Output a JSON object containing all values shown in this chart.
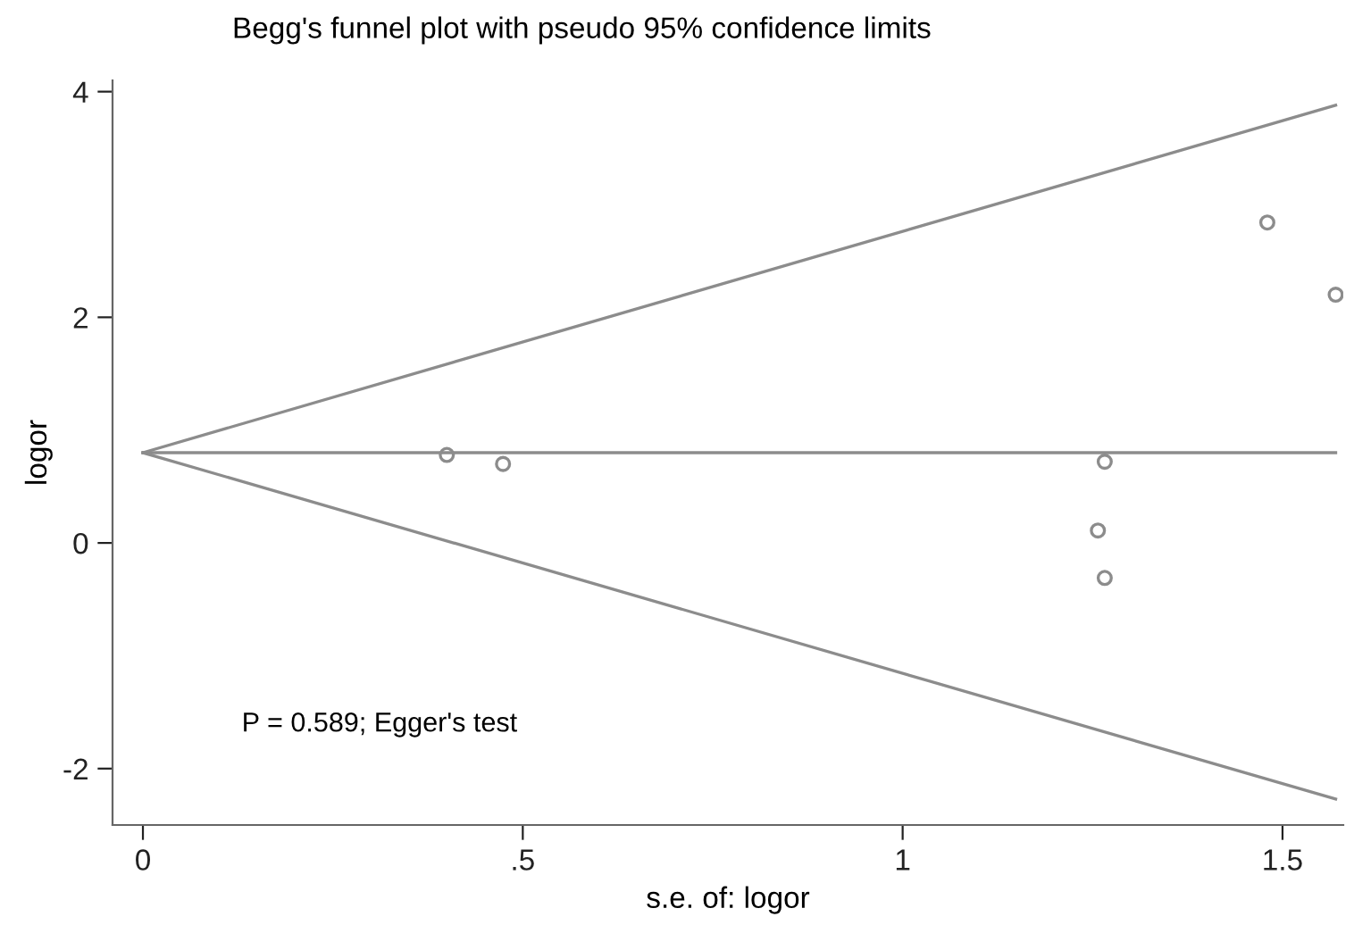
{
  "chart_data": {
    "type": "scatter",
    "title": "Begg's funnel plot with pseudo 95% confidence limits",
    "xlabel": "s.e. of: logor",
    "ylabel": "logor",
    "series": [
      {
        "color": "#8c8c8c",
        "marker": "circle",
        "x": [
          0.4,
          0.474,
          1.257,
          1.266,
          1.266,
          1.48,
          1.57
        ],
        "values": [
          0.78,
          0.7,
          0.11,
          0.72,
          -0.31,
          2.84,
          2.2
        ]
      },
      {
        "type": "line",
        "color": "#8c8c8c",
        "x": [
          0,
          1.57
        ],
        "values": [
          0.8,
          3.88
        ]
      },
      {
        "type": "line",
        "color": "#8c8c8c",
        "x": [
          0,
          1.57
        ],
        "values": [
          0.8,
          0.8
        ]
      },
      {
        "type": "line",
        "color": "#8c8c8c",
        "x": [
          0,
          1.57
        ],
        "values": [
          0.8,
          -2.27
        ]
      }
    ],
    "xlim": [
      -0.04,
      1.58
    ],
    "ylim": [
      -2.5,
      4.1
    ],
    "xticks": [
      0,
      {
        "value": 0.5,
        "label": ".5"
      },
      1,
      1.5
    ],
    "yticks": [
      -2,
      0,
      2,
      4
    ],
    "annotations": [
      "P = 0.589; Egger's test"
    ],
    "grid": false,
    "legend": false
  }
}
